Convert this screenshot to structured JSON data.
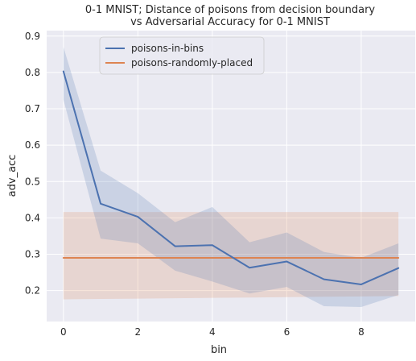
{
  "chart_data": {
    "type": "line",
    "title_lines": [
      "0-1 MNIST; Distance of poisons from decision boundary",
      "vs Adversarial Accuracy for 0-1 MNIST"
    ],
    "xlabel": "bin",
    "ylabel": "adv_acc",
    "xlim": [
      -0.45,
      9.45
    ],
    "ylim": [
      0.115,
      0.915
    ],
    "x_ticks": [
      0,
      2,
      4,
      6,
      8
    ],
    "y_ticks": [
      0.2,
      0.3,
      0.4,
      0.5,
      0.6,
      0.7,
      0.8,
      0.9
    ],
    "grid": true,
    "background": "#eaeaf2",
    "legend_placement": "top-center",
    "series": [
      {
        "name": "poisons-in-bins",
        "color": "#4c72b0",
        "x": [
          0,
          1,
          2,
          3,
          4,
          5,
          6,
          7,
          8,
          9
        ],
        "values": [
          0.803,
          0.439,
          0.403,
          0.322,
          0.325,
          0.263,
          0.28,
          0.231,
          0.217,
          0.262
        ],
        "ci_upper": [
          0.87,
          0.53,
          0.468,
          0.388,
          0.43,
          0.333,
          0.36,
          0.306,
          0.29,
          0.33
        ],
        "ci_lower": [
          0.725,
          0.343,
          0.33,
          0.255,
          0.225,
          0.192,
          0.21,
          0.157,
          0.155,
          0.188
        ]
      },
      {
        "name": "poisons-randomly-placed",
        "color": "#dd8452",
        "x": [
          0,
          1,
          2,
          3,
          4,
          5,
          6,
          7,
          8,
          9
        ],
        "values": [
          0.29,
          0.29,
          0.29,
          0.29,
          0.29,
          0.29,
          0.29,
          0.29,
          0.29,
          0.29
        ],
        "ci_upper": [
          0.416,
          0.416,
          0.416,
          0.416,
          0.416,
          0.416,
          0.416,
          0.416,
          0.416,
          0.416
        ],
        "ci_lower": [
          0.176,
          0.177,
          0.178,
          0.179,
          0.18,
          0.181,
          0.182,
          0.183,
          0.184,
          0.185
        ]
      }
    ]
  }
}
